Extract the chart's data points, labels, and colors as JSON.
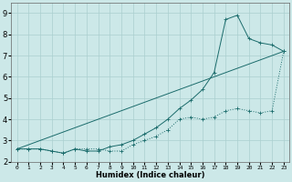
{
  "xlabel": "Humidex (Indice chaleur)",
  "xlim": [
    -0.5,
    23.5
  ],
  "ylim": [
    2,
    9.5
  ],
  "yticks": [
    2,
    3,
    4,
    5,
    6,
    7,
    8,
    9
  ],
  "xticks": [
    0,
    1,
    2,
    3,
    4,
    5,
    6,
    7,
    8,
    9,
    10,
    11,
    12,
    13,
    14,
    15,
    16,
    17,
    18,
    19,
    20,
    21,
    22,
    23
  ],
  "background_color": "#cce8e8",
  "grid_color": "#aacfcf",
  "line_color": "#1a6b6b",
  "line1_x": [
    0,
    1,
    2,
    3,
    4,
    5,
    6,
    7,
    8,
    9,
    10,
    11,
    12,
    13,
    14,
    15,
    16,
    17,
    18,
    19,
    20,
    21,
    22,
    23
  ],
  "line1_y": [
    2.6,
    2.6,
    2.6,
    2.5,
    2.4,
    2.6,
    2.6,
    2.6,
    2.5,
    2.5,
    2.8,
    3.0,
    3.2,
    3.5,
    4.0,
    4.1,
    4.0,
    4.1,
    4.4,
    4.5,
    4.4,
    4.3,
    4.4,
    7.2
  ],
  "line2_x": [
    0,
    23
  ],
  "line2_y": [
    2.6,
    7.2
  ],
  "line3_x": [
    0,
    1,
    2,
    3,
    4,
    5,
    6,
    7,
    8,
    9,
    10,
    11,
    12,
    13,
    14,
    15,
    16,
    17,
    18,
    19,
    20,
    21,
    22,
    23
  ],
  "line3_y": [
    2.6,
    2.6,
    2.6,
    2.5,
    2.4,
    2.6,
    2.5,
    2.5,
    2.7,
    2.8,
    3.0,
    3.3,
    3.6,
    4.0,
    4.5,
    4.9,
    5.4,
    6.2,
    8.7,
    8.9,
    7.8,
    7.6,
    7.5,
    7.2
  ]
}
